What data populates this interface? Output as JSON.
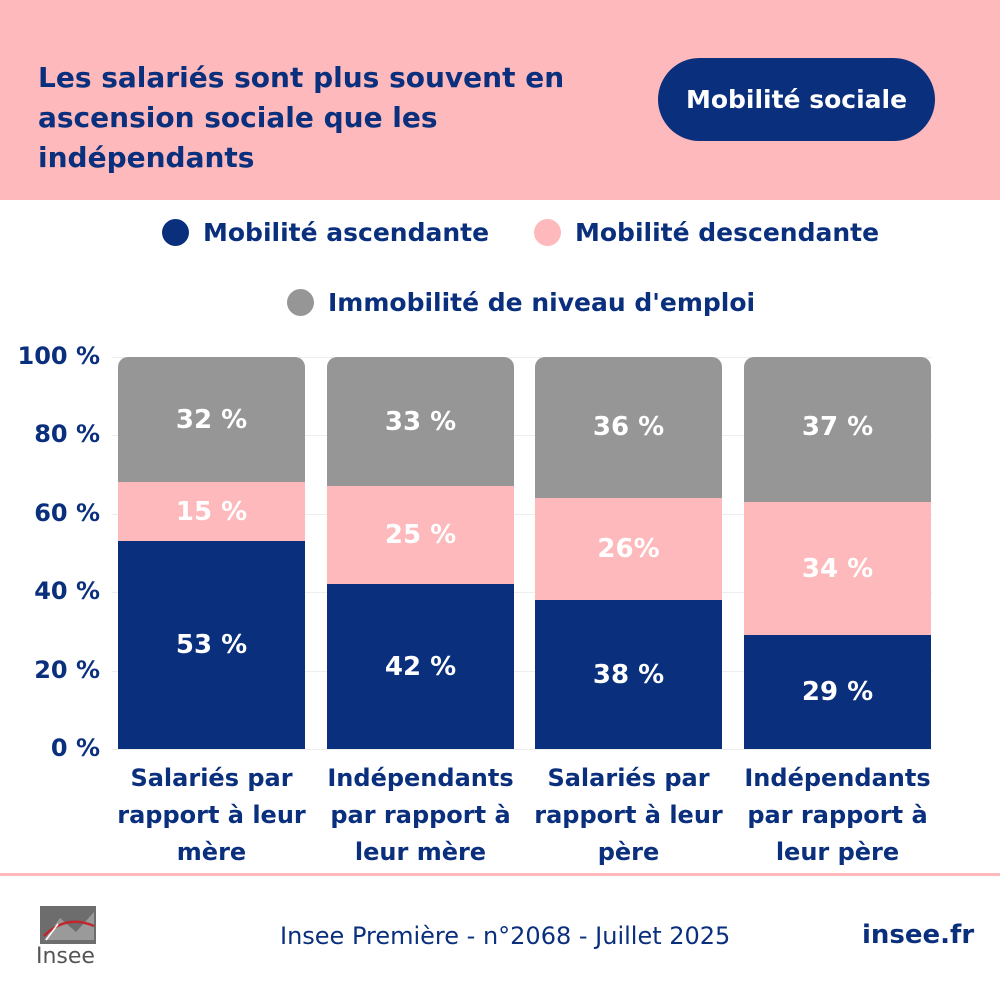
{
  "header": {
    "title_line1": "Les salariés sont plus souvent en",
    "title_line2": "ascension sociale que les indépendants",
    "badge": "Mobilité sociale"
  },
  "colors": {
    "navy": "#0a2f7d",
    "pink": "#fdb9bc",
    "grey": "#969696",
    "header_bg": "#fdb9bc"
  },
  "chart_data": {
    "type": "bar",
    "stacked": true,
    "categories": [
      "Salariés par rapport à leur mère",
      "Indépendants par rapport à leur mère",
      "Salariés par rapport à leur père",
      "Indépendants par rapport à leur père"
    ],
    "category_lines": [
      [
        "Salariés par",
        "rapport à leur",
        "mère"
      ],
      [
        "Indépendants",
        "par rapport à",
        "leur mère"
      ],
      [
        "Salariés par",
        "rapport à leur",
        "père"
      ],
      [
        "Indépendants",
        "par rapport à",
        "leur père"
      ]
    ],
    "series": [
      {
        "name": "Mobilité ascendante",
        "color": "#0a2f7d",
        "values": [
          53,
          42,
          38,
          29
        ],
        "labels": [
          "53 %",
          "42 %",
          "38 %",
          "29 %"
        ]
      },
      {
        "name": "Mobilité descendante",
        "color": "#fdb9bc",
        "values": [
          15,
          25,
          26,
          34
        ],
        "labels": [
          "15 %",
          "25 %",
          "26%",
          "34 %"
        ]
      },
      {
        "name": "Immobilité de niveau d'emploi",
        "color": "#969696",
        "values": [
          32,
          33,
          36,
          37
        ],
        "labels": [
          "32 %",
          "33 %",
          "36 %",
          "37 %"
        ]
      }
    ],
    "y_ticks": [
      "0 %",
      "20 %",
      "40 %",
      "60 %",
      "80 %",
      "100 %"
    ],
    "ylim": [
      0,
      100
    ],
    "legend_position": "top"
  },
  "footer": {
    "logo_text": "Insee",
    "source": "Insee Première - n°2068 - Juillet 2025",
    "site": "insee.fr"
  }
}
